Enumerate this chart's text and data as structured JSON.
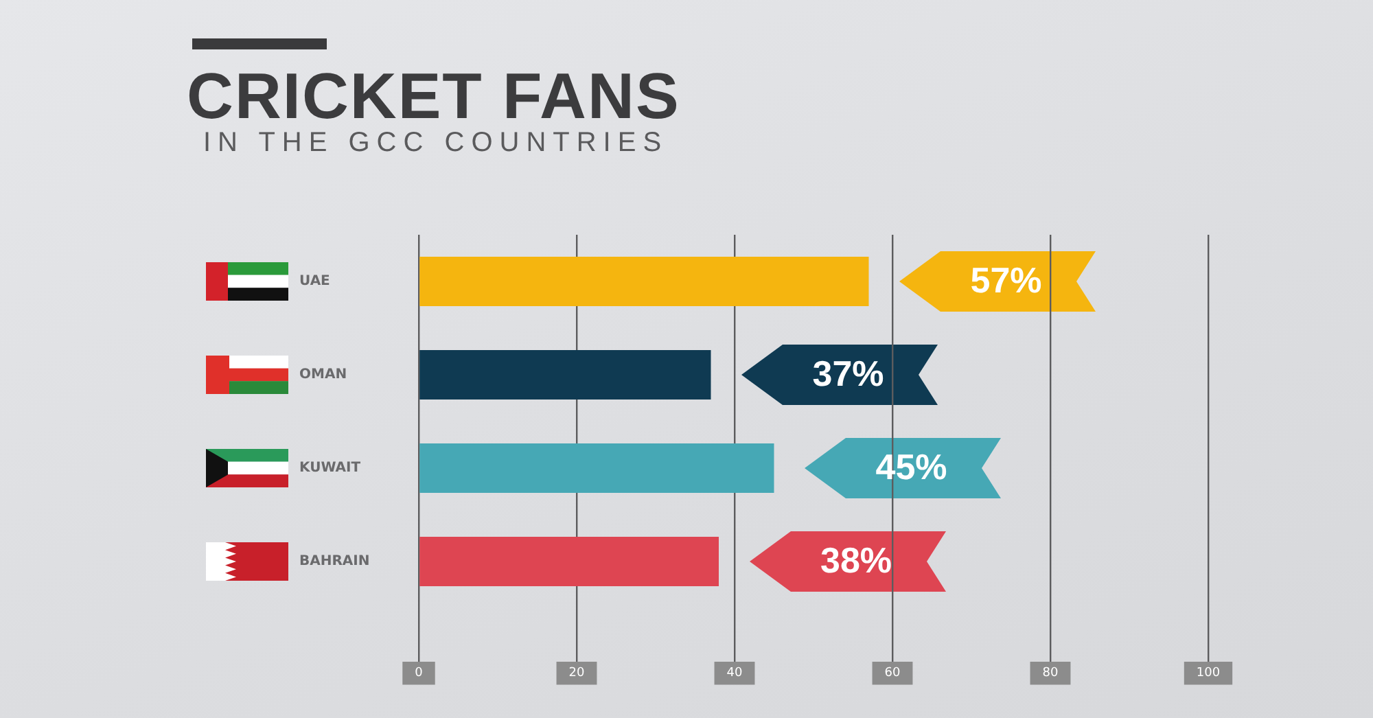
{
  "chart_data": {
    "type": "bar",
    "title": "CRICKET FANS",
    "subtitle": "IN THE GCC COUNTRIES",
    "orientation": "horizontal",
    "categories": [
      "UAE",
      "OMAN",
      "KUWAIT",
      "BAHRAIN"
    ],
    "values": [
      57,
      37,
      45,
      38
    ],
    "colors": [
      "#f5b50f",
      "#0f3a52",
      "#46a8b5",
      "#de4552"
    ],
    "value_labels": [
      "57%",
      "37%",
      "45%",
      "38%"
    ],
    "xlim": [
      0,
      100
    ],
    "xticks": [
      0,
      20,
      40,
      60,
      80,
      100
    ],
    "grid": "x"
  }
}
